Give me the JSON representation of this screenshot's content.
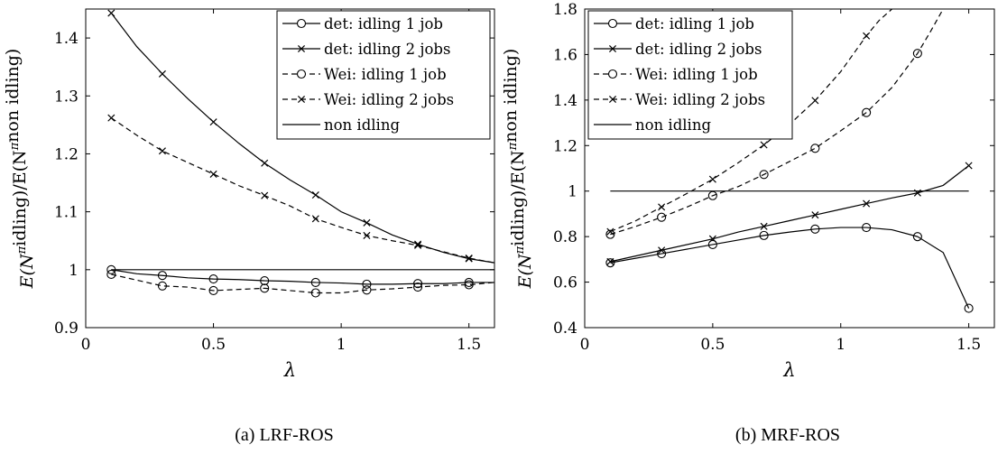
{
  "chart_data": [
    {
      "type": "line",
      "caption": "(a) LRF-ROS",
      "xlabel": "λ",
      "ylabel": "E(N^πidling)/E(N^πnon idling)",
      "xlim": [
        0,
        1.6
      ],
      "ylim": [
        0.9,
        1.45
      ],
      "xticks": [
        "0",
        "0.5",
        "1",
        "1.5"
      ],
      "xtick_values": [
        0,
        0.5,
        1,
        1.5
      ],
      "yticks": [
        "0.9",
        "1",
        "1.1",
        "1.2",
        "1.3",
        "1.4"
      ],
      "ytick_values": [
        0.9,
        1.0,
        1.1,
        1.2,
        1.3,
        1.4
      ],
      "legend_position": "top-right",
      "grid": false,
      "series": [
        {
          "name": "det: idling 1 job",
          "dash": "solid",
          "marker": "circle",
          "x": [
            0.1,
            0.2,
            0.3,
            0.4,
            0.5,
            0.6,
            0.7,
            0.8,
            0.9,
            1.0,
            1.1,
            1.2,
            1.3,
            1.4,
            1.5,
            1.6
          ],
          "y": [
            1.0,
            0.993,
            0.99,
            0.986,
            0.984,
            0.983,
            0.981,
            0.98,
            0.978,
            0.977,
            0.975,
            0.975,
            0.976,
            0.976,
            0.978,
            0.978
          ],
          "marker_x": [
            0.1,
            0.3,
            0.5,
            0.7,
            0.9,
            1.1,
            1.3,
            1.5
          ]
        },
        {
          "name": "det: idling 2 jobs",
          "dash": "solid",
          "marker": "x",
          "x": [
            0.1,
            0.2,
            0.3,
            0.4,
            0.5,
            0.6,
            0.7,
            0.8,
            0.9,
            1.0,
            1.1,
            1.2,
            1.3,
            1.4,
            1.5,
            1.6
          ],
          "y": [
            1.443,
            1.385,
            1.338,
            1.295,
            1.255,
            1.218,
            1.184,
            1.155,
            1.129,
            1.1,
            1.081,
            1.06,
            1.044,
            1.03,
            1.019,
            1.012
          ],
          "marker_x": [
            0.1,
            0.3,
            0.5,
            0.7,
            0.9,
            1.1,
            1.3,
            1.5
          ]
        },
        {
          "name": "Wei: idling 1 job",
          "dash": "dashed",
          "marker": "circle",
          "x": [
            0.1,
            0.2,
            0.3,
            0.4,
            0.5,
            0.6,
            0.7,
            0.8,
            0.9,
            1.0,
            1.1,
            1.2,
            1.3,
            1.4,
            1.5,
            1.6
          ],
          "y": [
            0.992,
            0.982,
            0.972,
            0.97,
            0.964,
            0.966,
            0.968,
            0.964,
            0.96,
            0.96,
            0.965,
            0.967,
            0.97,
            0.973,
            0.974,
            0.978
          ],
          "marker_x": [
            0.1,
            0.3,
            0.5,
            0.7,
            0.9,
            1.1,
            1.3,
            1.5
          ]
        },
        {
          "name": "Wei: idling 2 jobs",
          "dash": "dashed",
          "marker": "x",
          "x": [
            0.1,
            0.2,
            0.3,
            0.4,
            0.5,
            0.6,
            0.7,
            0.8,
            0.9,
            1.0,
            1.1,
            1.2,
            1.3,
            1.4,
            1.5,
            1.6
          ],
          "y": [
            1.262,
            1.232,
            1.205,
            1.185,
            1.165,
            1.145,
            1.128,
            1.11,
            1.088,
            1.073,
            1.059,
            1.05,
            1.042,
            1.031,
            1.02,
            1.012
          ],
          "marker_x": [
            0.1,
            0.3,
            0.5,
            0.7,
            0.9,
            1.1,
            1.3,
            1.5
          ]
        },
        {
          "name": "non idling",
          "dash": "solid",
          "marker": "none",
          "x": [
            0.1,
            1.6
          ],
          "y": [
            1.0,
            1.0
          ],
          "marker_x": []
        }
      ]
    },
    {
      "type": "line",
      "caption": "(b) MRF-ROS",
      "xlabel": "λ",
      "ylabel": "E(N^πidling)/E(N^πnon idling)",
      "xlim": [
        0,
        1.6
      ],
      "ylim": [
        0.4,
        1.8
      ],
      "xticks": [
        "0",
        "0.5",
        "1",
        "1.5"
      ],
      "xtick_values": [
        0,
        0.5,
        1,
        1.5
      ],
      "yticks": [
        "0.4",
        "0.6",
        "0.8",
        "1",
        "1.2",
        "1.4",
        "1.6",
        "1.8"
      ],
      "ytick_values": [
        0.4,
        0.6,
        0.8,
        1.0,
        1.2,
        1.4,
        1.6,
        1.8
      ],
      "legend_position": "top-left",
      "grid": false,
      "series": [
        {
          "name": "det: idling 1 job",
          "dash": "solid",
          "marker": "circle",
          "x": [
            0.1,
            0.3,
            0.5,
            0.6,
            0.7,
            0.8,
            0.9,
            1.0,
            1.1,
            1.2,
            1.3,
            1.4,
            1.5
          ],
          "y": [
            0.685,
            0.725,
            0.765,
            0.785,
            0.805,
            0.82,
            0.833,
            0.84,
            0.84,
            0.83,
            0.8,
            0.73,
            0.485
          ],
          "marker_x": [
            0.1,
            0.3,
            0.5,
            0.7,
            0.9,
            1.1,
            1.3,
            1.5
          ]
        },
        {
          "name": "det: idling 2 jobs",
          "dash": "solid",
          "marker": "x",
          "x": [
            0.1,
            0.3,
            0.5,
            0.6,
            0.7,
            0.8,
            0.9,
            1.0,
            1.1,
            1.2,
            1.3,
            1.4,
            1.5
          ],
          "y": [
            0.69,
            0.74,
            0.79,
            0.82,
            0.845,
            0.87,
            0.895,
            0.92,
            0.945,
            0.97,
            0.992,
            1.025,
            1.112
          ],
          "marker_x": [
            0.1,
            0.3,
            0.5,
            0.7,
            0.9,
            1.1,
            1.3,
            1.5
          ]
        },
        {
          "name": "Wei: idling 1 job",
          "dash": "dashed",
          "marker": "circle",
          "x": [
            0.1,
            0.2,
            0.3,
            0.4,
            0.5,
            0.6,
            0.7,
            0.8,
            0.9,
            1.0,
            1.1,
            1.2,
            1.3,
            1.35,
            1.4
          ],
          "y": [
            0.81,
            0.845,
            0.885,
            0.93,
            0.98,
            1.02,
            1.073,
            1.13,
            1.188,
            1.265,
            1.345,
            1.455,
            1.605,
            1.7,
            1.8
          ],
          "marker_x": [
            0.1,
            0.3,
            0.5,
            0.7,
            0.9,
            1.1,
            1.3
          ]
        },
        {
          "name": "Wei: idling 2 jobs",
          "dash": "dashed",
          "marker": "x",
          "x": [
            0.1,
            0.2,
            0.3,
            0.4,
            0.5,
            0.6,
            0.7,
            0.8,
            0.9,
            1.0,
            1.1,
            1.15,
            1.2
          ],
          "y": [
            0.822,
            0.87,
            0.93,
            0.99,
            1.052,
            1.125,
            1.203,
            1.293,
            1.398,
            1.525,
            1.682,
            1.75,
            1.8
          ],
          "marker_x": [
            0.1,
            0.3,
            0.5,
            0.7,
            0.9,
            1.1
          ]
        },
        {
          "name": "non idling",
          "dash": "solid",
          "marker": "none",
          "x": [
            0.1,
            1.5
          ],
          "y": [
            1.0,
            1.0
          ],
          "marker_x": []
        }
      ]
    }
  ]
}
